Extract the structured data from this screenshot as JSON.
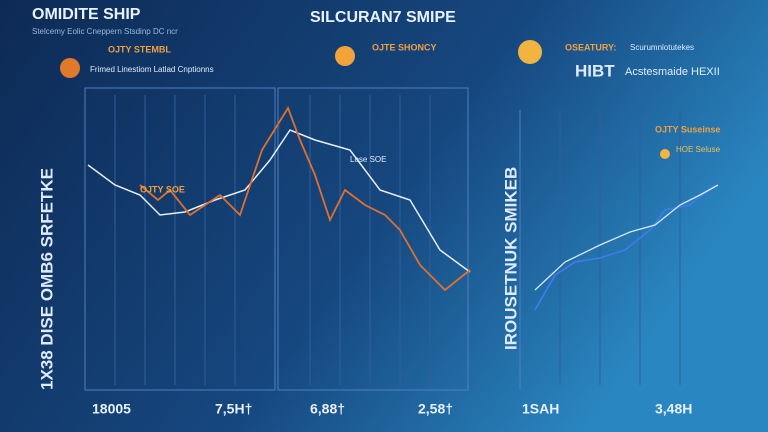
{
  "header": {
    "left": {
      "title": "OMIDITE SHIP",
      "subtitle": "Stelcemy Eolic Cneppern Stsdinp DC ncr",
      "badge": "OJTY STEMBL",
      "caption": "Frimed Linestiom Latlad Cnptionns"
    },
    "center": {
      "title": "SILCURAN7 SMIPE",
      "badge": "OJTE SHONCY"
    },
    "right": {
      "badge": "OSEATURY:",
      "note": "Scurumnlotutekes",
      "title": "HIBT",
      "caption": "Acstesmaide HEXII"
    }
  },
  "side_labels": {
    "left": "1X38 DISE OMB6 SRFETKE",
    "middle": "IROUSETNUK SMIKEB"
  },
  "annotations": {
    "left": "OJTY SOE",
    "middle": "Lose SOE",
    "right_top": "OJTY Suseinse",
    "right_sub": "HOE Seluse"
  },
  "footer": [
    "18005",
    "7,5H†",
    "6,88†",
    "2,58†",
    "1SAH",
    "3,48H"
  ]
}
